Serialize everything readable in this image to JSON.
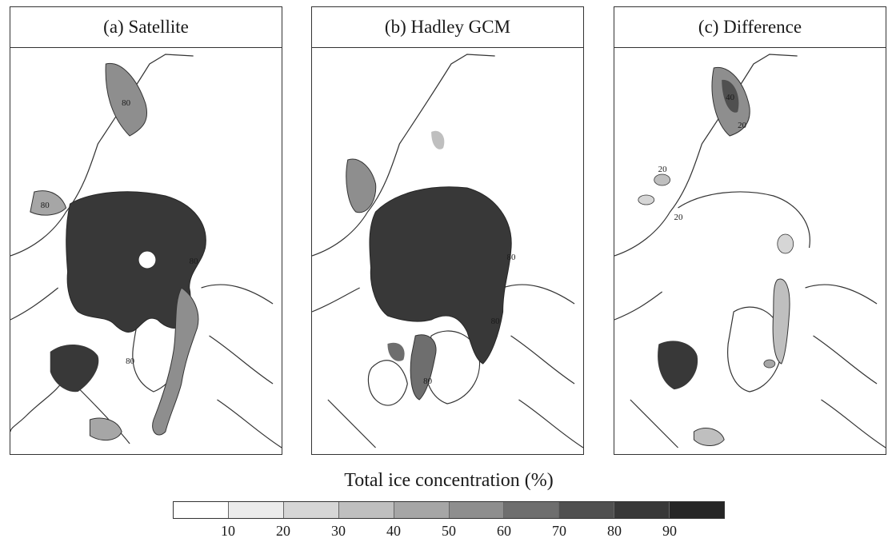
{
  "panels": [
    {
      "title": "(a) Satellite"
    },
    {
      "title": "(b) Hadley GCM"
    },
    {
      "title": "(c) Difference"
    }
  ],
  "contour_labels": {
    "a": [
      "80",
      "80",
      "80",
      "80"
    ],
    "b": [
      "80",
      "80",
      "80"
    ],
    "c": [
      "40",
      "20",
      "20",
      "20"
    ]
  },
  "legend": {
    "title": "Total ice concentration (%)",
    "ticks": [
      "10",
      "20",
      "30",
      "40",
      "50",
      "60",
      "70",
      "80",
      "90"
    ],
    "colors": [
      "#ffffff",
      "#ececec",
      "#d6d6d6",
      "#bfbfbf",
      "#a6a6a6",
      "#8e8e8e",
      "#6e6e6e",
      "#505050",
      "#383838",
      "#262626"
    ]
  }
}
